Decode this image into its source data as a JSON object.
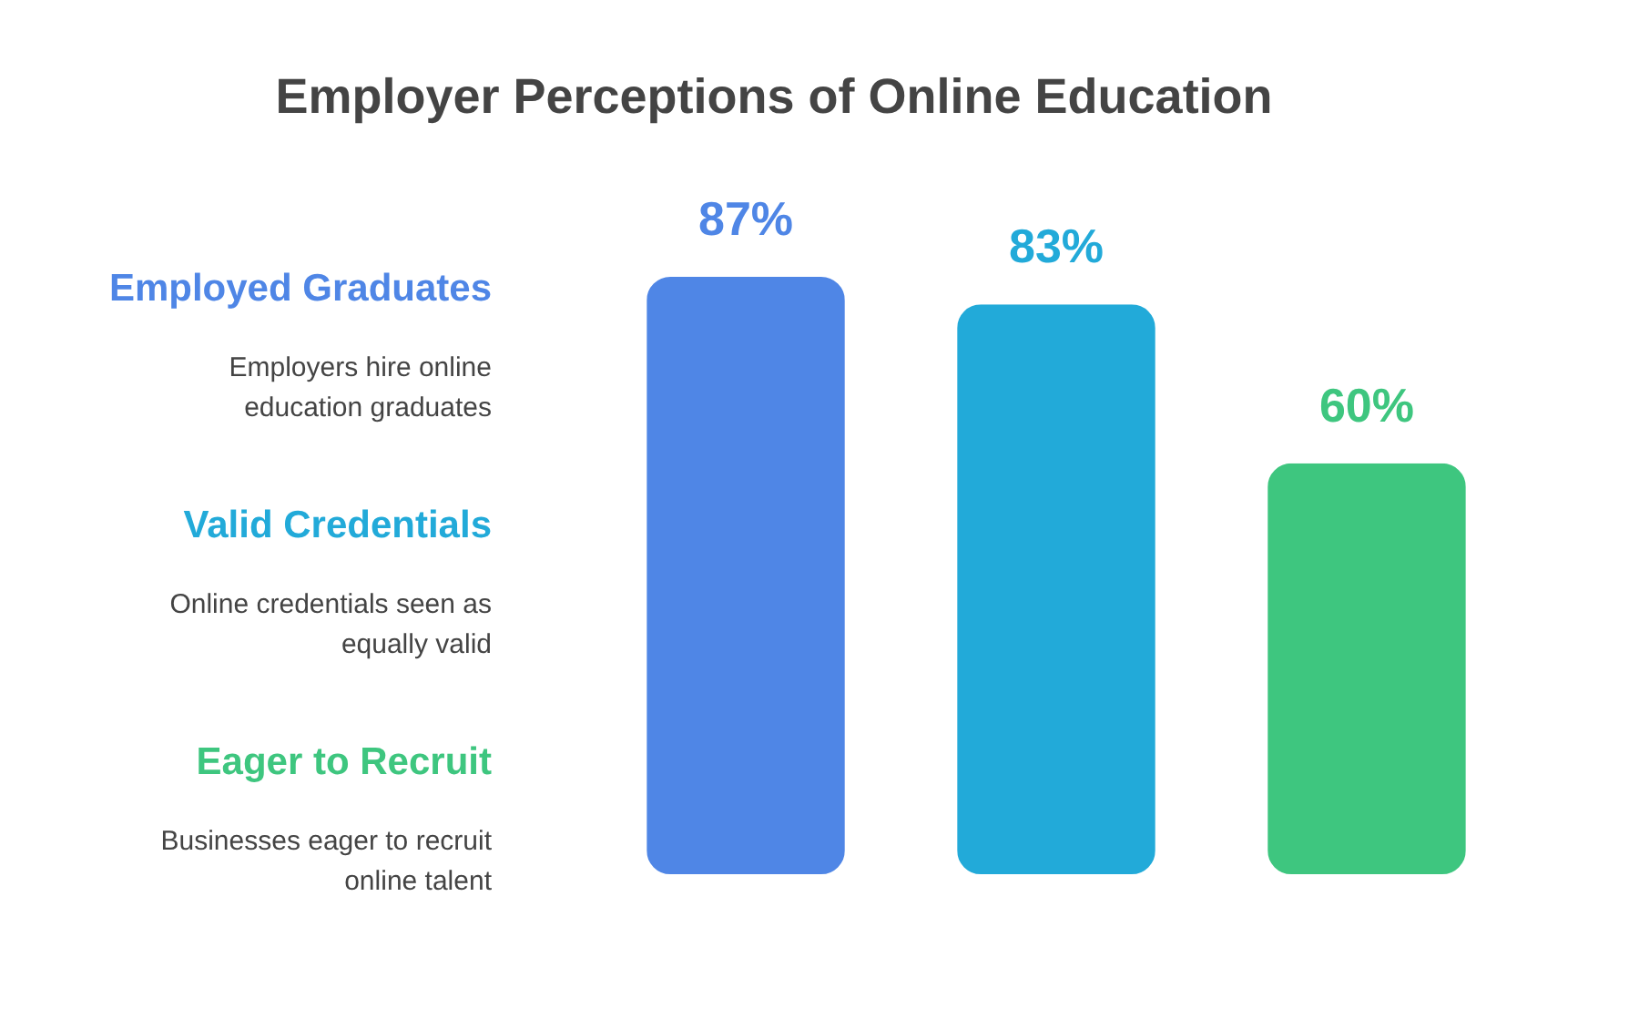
{
  "chart_data": {
    "type": "bar",
    "title": "Employer Perceptions of Online Education",
    "categories": [
      null,
      null,
      null
    ],
    "values": [
      87,
      83,
      60
    ],
    "colors": [
      "#4f86e6",
      "#22aad9",
      "#3ec67f"
    ],
    "value_labels": [
      "87%",
      "83%",
      "60%"
    ],
    "annotations": [
      "Employed Graduates",
      "Employers hire online education graduates",
      "Valid Credentials",
      "Online credentials seen as equally valid",
      "Eager to Recruit",
      "Businesses eager to recruit online talent"
    ]
  }
}
